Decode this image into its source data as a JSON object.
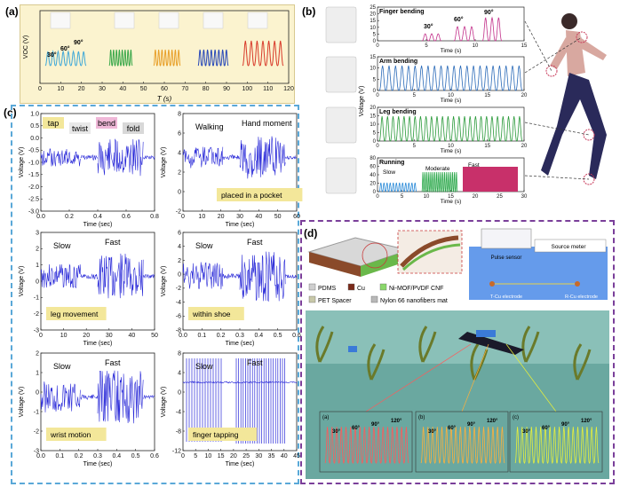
{
  "panels": {
    "a": "(a)",
    "b": "(b)",
    "c": "(c)",
    "d": "(d)"
  },
  "a": {
    "ylabel": "VOC (V)",
    "xlabel": "T (s)",
    "xticks": [
      "0",
      "10",
      "20",
      "30",
      "40",
      "50",
      "60",
      "70",
      "80",
      "90",
      "100",
      "110",
      "120"
    ],
    "angles": [
      "30°",
      "60°",
      "90°"
    ],
    "colors": [
      "#3fa8d8",
      "#3aa84a",
      "#e8a02a",
      "#2848b8",
      "#d83a2a"
    ]
  },
  "b": {
    "ylabel": "Voltage (V)",
    "xlabel": "Time (s)",
    "plots": [
      {
        "title": "Finger bending",
        "yticks": [
          "0",
          "5",
          "10",
          "15",
          "20",
          "25"
        ],
        "xticks": [
          "0",
          "5",
          "10",
          "15"
        ],
        "labels": [
          "30°",
          "60°",
          "90°"
        ],
        "color": "#c2308a"
      },
      {
        "title": "Arm bending",
        "yticks": [
          "0",
          "5",
          "10",
          "15"
        ],
        "xticks": [
          "0",
          "5",
          "10",
          "15",
          "20"
        ],
        "labels": [],
        "color": "#2a6ab8"
      },
      {
        "title": "Leg bending",
        "yticks": [
          "0",
          "5",
          "10",
          "15",
          "20"
        ],
        "xticks": [
          "0",
          "5",
          "10",
          "15",
          "20"
        ],
        "labels": [],
        "color": "#2a9a3a"
      },
      {
        "title": "Running",
        "yticks": [
          "0",
          "20",
          "40",
          "60",
          "80"
        ],
        "xticks": [
          "0",
          "5",
          "10",
          "15",
          "20",
          "25",
          "30"
        ],
        "labels": [
          "Slow",
          "Moderate",
          "Fast"
        ],
        "color": "#2a4ab8"
      }
    ]
  },
  "c": {
    "ylabel": "Voltage (V)",
    "xlabel": "Time (sec)",
    "plots": [
      {
        "yticks": [
          "1.0",
          "0.5",
          "0.0",
          "-0.5",
          "-1.0",
          "-1.5",
          "-2.0",
          "-2.5",
          "-3.0"
        ],
        "xticks": [
          "0.0",
          "0.2",
          "0.4",
          "0.6",
          "0.8"
        ],
        "tags": [
          "tap",
          "twist",
          "bend",
          "fold"
        ],
        "note": ""
      },
      {
        "yticks": [
          "8",
          "6",
          "4",
          "2",
          "0",
          "-2"
        ],
        "xticks": [
          "0",
          "10",
          "20",
          "30",
          "40",
          "50",
          "60"
        ],
        "tags": [
          "Walking",
          "Hand moment"
        ],
        "note": "placed in a pocket"
      },
      {
        "yticks": [
          "3",
          "2",
          "1",
          "0",
          "-1",
          "-2",
          "-3"
        ],
        "xticks": [
          "0",
          "10",
          "20",
          "30",
          "40",
          "50"
        ],
        "tags": [
          "Slow",
          "Fast"
        ],
        "note": "leg movement"
      },
      {
        "yticks": [
          "6",
          "4",
          "2",
          "0",
          "-2",
          "-4",
          "-6",
          "-8"
        ],
        "xticks": [
          "0.0",
          "0.1",
          "0.2",
          "0.3",
          "0.4",
          "0.5",
          "0.6"
        ],
        "tags": [
          "Slow",
          "Fast"
        ],
        "note": "within shoe"
      },
      {
        "yticks": [
          "2",
          "1",
          "0",
          "-1",
          "-2",
          "-3"
        ],
        "xticks": [
          "0.0",
          "0.1",
          "0.2",
          "0.3",
          "0.4",
          "0.5",
          "0.6"
        ],
        "tags": [
          "Slow",
          "Fast"
        ],
        "note": "wrist motion"
      },
      {
        "yticks": [
          "8",
          "4",
          "0",
          "-4",
          "-8",
          "-12"
        ],
        "xticks": [
          "0",
          "5",
          "10",
          "15",
          "20",
          "25",
          "30",
          "35",
          "40",
          "45"
        ],
        "tags": [
          "Slow",
          "Fast"
        ],
        "note": "finger tapping"
      }
    ]
  },
  "d": {
    "legend": [
      "PDMS",
      "Cu",
      "Ni-MOF/PVDF CNF",
      "PET Spacer",
      "Nylon 66 nanofibers mat"
    ],
    "legend_colors": [
      "#cfcfcf",
      "#7a2a1a",
      "#8ad86a",
      "#c8c8a8",
      "#b8b8b8"
    ],
    "pulse": "Pulse sensor",
    "meter": "Source meter",
    "tcu": "T-Cu electrode",
    "rcu": "R-Cu electrode",
    "insets": [
      {
        "tag": "(a)",
        "angles": [
          "30°",
          "60°",
          "90°",
          "120°"
        ],
        "color": "#ff5a5a"
      },
      {
        "tag": "(b)",
        "angles": [
          "30°",
          "60°",
          "90°",
          "120°"
        ],
        "color": "#ffb03a"
      },
      {
        "tag": "(c)",
        "angles": [
          "30°",
          "60°",
          "90°",
          "120°"
        ],
        "color": "#e8f03a"
      }
    ]
  }
}
